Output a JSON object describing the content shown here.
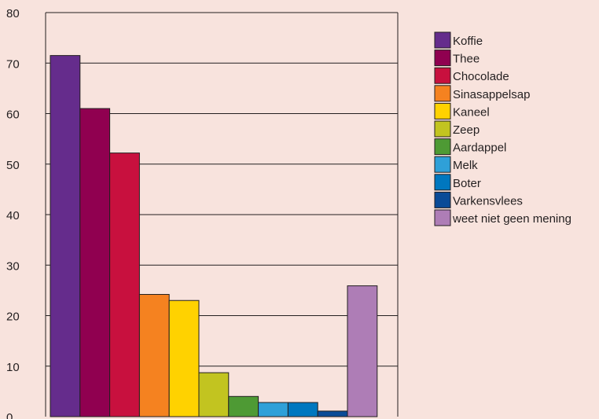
{
  "chart_data": {
    "type": "bar",
    "title": "",
    "xlabel": "",
    "ylabel": "",
    "ylim": [
      0,
      80
    ],
    "yticks": [
      0,
      10,
      20,
      30,
      40,
      50,
      60,
      70,
      80
    ],
    "grid": true,
    "legend_position": "right",
    "categories": [
      "Koffie",
      "Thee",
      "Chocolade",
      "Sinasappelsap",
      "Kaneel",
      "Zeep",
      "Aardappel",
      "Melk",
      "Boter",
      "Varkensvlees",
      "weet niet geen mening"
    ],
    "values": [
      71.5,
      61,
      52.2,
      24.2,
      23,
      8.7,
      4,
      2.8,
      2.8,
      1.1,
      25.9
    ],
    "colors": [
      "#652c8c",
      "#900050",
      "#c8103e",
      "#f58220",
      "#ffd200",
      "#c2c420",
      "#4e9a34",
      "#2fa0d8",
      "#0077bf",
      "#0a4b97",
      "#ae7db6"
    ]
  }
}
